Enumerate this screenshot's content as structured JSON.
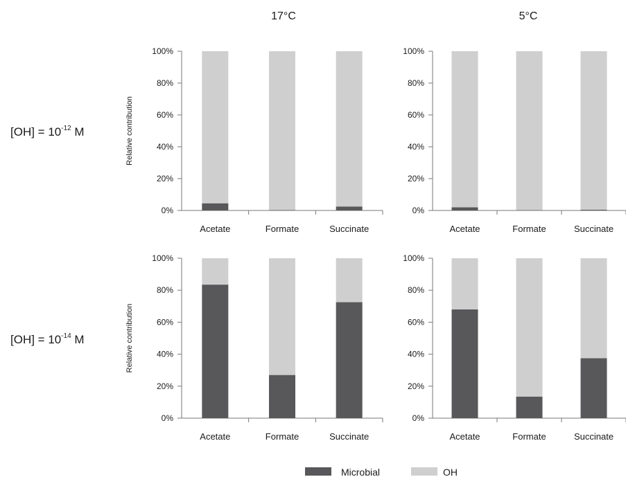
{
  "column_titles": [
    "17°C",
    "5°C"
  ],
  "row_labels": [
    {
      "base": "[OH] = 10",
      "exp": "-12",
      "unit": " M"
    },
    {
      "base": "[OH] = 10",
      "exp": "-14",
      "unit": " M"
    }
  ],
  "legend": [
    {
      "name": "Microbial",
      "color": "#58585a"
    },
    {
      "name": "OH",
      "color": "#cfcfd0"
    }
  ],
  "colors": {
    "microbial": "#58585a",
    "oh": "#cfcfd0",
    "axis": "#777777"
  },
  "chart_data": [
    {
      "type": "bar",
      "stacked": true,
      "row": 0,
      "col": 0,
      "categories": [
        "Acetate",
        "Formate",
        "Succinate"
      ],
      "ylabel": "Relative contribution",
      "ylim": [
        0,
        100
      ],
      "yticks": [
        "0%",
        "20%",
        "40%",
        "60%",
        "80%",
        "100%"
      ],
      "series": [
        {
          "name": "Microbial",
          "values": [
            4.5,
            0.3,
            2.5
          ]
        },
        {
          "name": "OH",
          "values": [
            95.5,
            99.7,
            97.5
          ]
        }
      ]
    },
    {
      "type": "bar",
      "stacked": true,
      "row": 0,
      "col": 1,
      "categories": [
        "Acetate",
        "Formate",
        "Succinate"
      ],
      "ylabel": "",
      "ylim": [
        0,
        100
      ],
      "yticks": [
        "0%",
        "20%",
        "40%",
        "60%",
        "80%",
        "100%"
      ],
      "series": [
        {
          "name": "Microbial",
          "values": [
            2,
            0.2,
            0.5
          ]
        },
        {
          "name": "OH",
          "values": [
            98,
            99.8,
            99.5
          ]
        }
      ]
    },
    {
      "type": "bar",
      "stacked": true,
      "row": 1,
      "col": 0,
      "categories": [
        "Acetate",
        "Formate",
        "Succinate"
      ],
      "ylabel": "Relative contribution",
      "ylim": [
        0,
        100
      ],
      "yticks": [
        "0%",
        "20%",
        "40%",
        "60%",
        "80%",
        "100%"
      ],
      "series": [
        {
          "name": "Microbial",
          "values": [
            83.5,
            27,
            72.5
          ]
        },
        {
          "name": "OH",
          "values": [
            16.5,
            73,
            27.5
          ]
        }
      ]
    },
    {
      "type": "bar",
      "stacked": true,
      "row": 1,
      "col": 1,
      "categories": [
        "Acetate",
        "Formate",
        "Succinate"
      ],
      "ylabel": "",
      "ylim": [
        0,
        100
      ],
      "yticks": [
        "0%",
        "20%",
        "40%",
        "60%",
        "80%",
        "100%"
      ],
      "series": [
        {
          "name": "Microbial",
          "values": [
            68,
            13.5,
            37.5
          ]
        },
        {
          "name": "OH",
          "values": [
            32,
            86.5,
            62.5
          ]
        }
      ]
    }
  ]
}
